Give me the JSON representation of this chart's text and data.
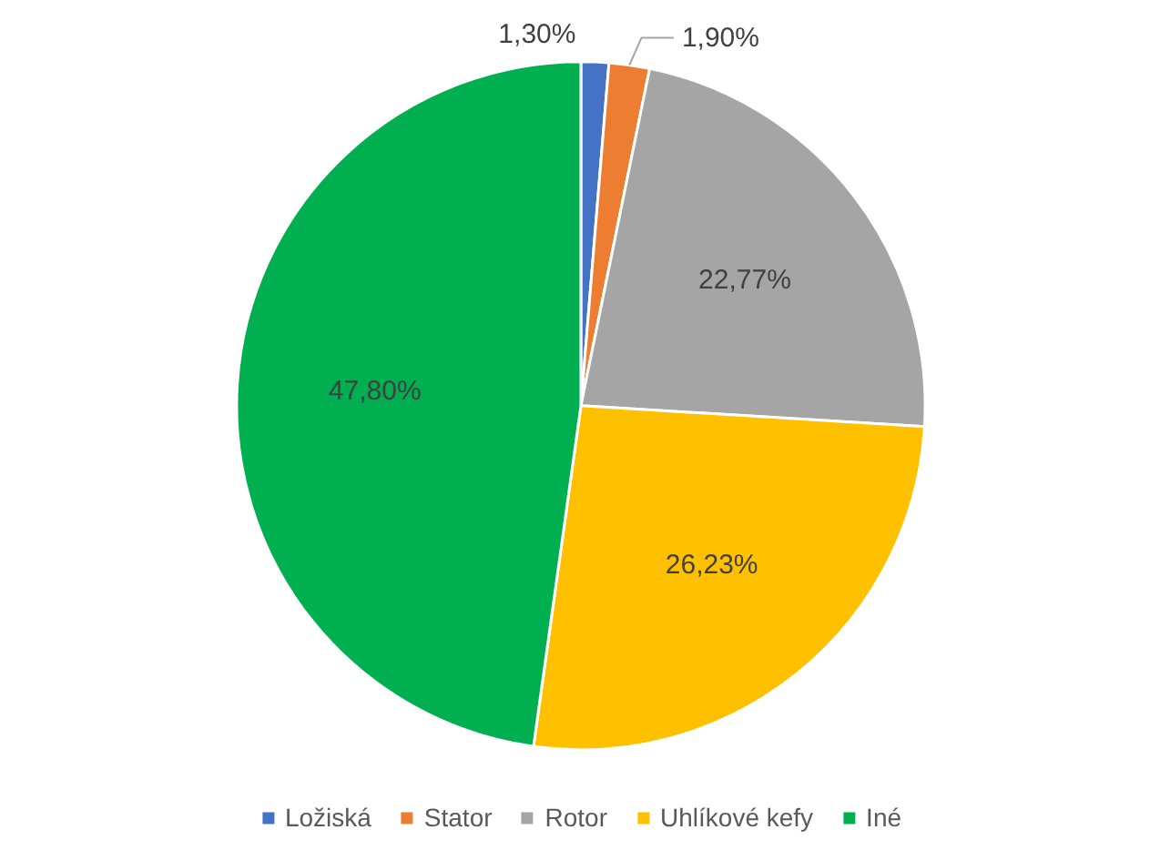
{
  "chart_data": {
    "type": "pie",
    "categories": [
      "Ložiská",
      "Stator",
      "Rotor",
      "Uhlíkové kefy",
      "Iné"
    ],
    "values": [
      1.3,
      1.9,
      22.77,
      26.23,
      47.8
    ],
    "colors": [
      "#4472c4",
      "#ed7d31",
      "#a5a5a5",
      "#ffc000",
      "#00b050"
    ],
    "value_labels": [
      "1,30%",
      "1,90%",
      "22,77%",
      "26,23%",
      "47,80%"
    ],
    "legend": "bottom"
  }
}
